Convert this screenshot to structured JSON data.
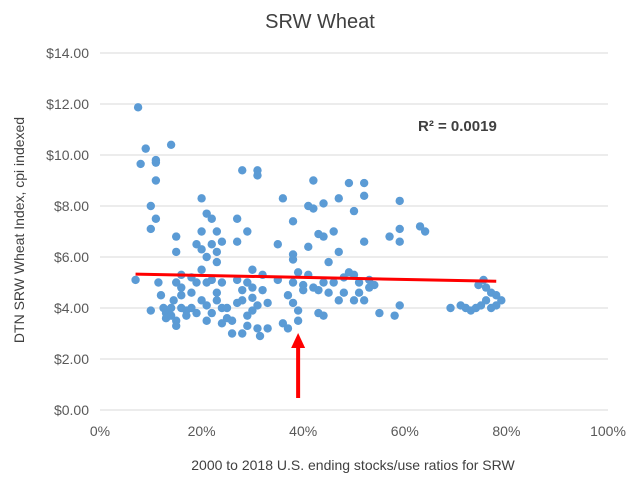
{
  "chart_data": {
    "type": "scatter",
    "title": "SRW Wheat",
    "xlabel": "2000 to 2018 U.S. ending stocks/use ratios for SRW",
    "ylabel": "DTN SRW Wheat Index, cpi indexed",
    "xlim": [
      0,
      1.0
    ],
    "ylim": [
      0,
      14
    ],
    "x_ticks": [
      0,
      0.2,
      0.4,
      0.6,
      0.8,
      1.0
    ],
    "x_tick_labels": [
      "0%",
      "20%",
      "40%",
      "60%",
      "80%",
      "100%"
    ],
    "y_ticks": [
      0,
      2,
      4,
      6,
      8,
      10,
      12,
      14
    ],
    "y_tick_labels": [
      "$0.00",
      "$2.00",
      "$4.00",
      "$6.00",
      "$8.00",
      "$10.00",
      "$12.00",
      "$14.00"
    ],
    "grid": true,
    "annotation": "R² = 0.0019",
    "arrow_at_x": 0.39,
    "colors": {
      "points": "#5b9bd5",
      "trendline": "#ff0000",
      "arrow": "#ff0000",
      "grid": "#d9d9d9"
    },
    "trendline": {
      "x": [
        0.07,
        0.78
      ],
      "y": [
        5.33,
        5.05
      ]
    },
    "points": [
      [
        0.075,
        11.87
      ],
      [
        0.08,
        9.65
      ],
      [
        0.09,
        10.25
      ],
      [
        0.07,
        5.1
      ],
      [
        0.11,
        9.8
      ],
      [
        0.11,
        9.7
      ],
      [
        0.11,
        9.0
      ],
      [
        0.1,
        8.0
      ],
      [
        0.1,
        7.1
      ],
      [
        0.11,
        7.5
      ],
      [
        0.115,
        5.0
      ],
      [
        0.12,
        4.5
      ],
      [
        0.1,
        3.9
      ],
      [
        0.125,
        4.0
      ],
      [
        0.13,
        3.8
      ],
      [
        0.13,
        3.6
      ],
      [
        0.14,
        10.4
      ],
      [
        0.14,
        3.7
      ],
      [
        0.15,
        6.8
      ],
      [
        0.15,
        6.2
      ],
      [
        0.15,
        5.0
      ],
      [
        0.145,
        4.3
      ],
      [
        0.14,
        4.0
      ],
      [
        0.15,
        3.5
      ],
      [
        0.15,
        3.3
      ],
      [
        0.16,
        5.3
      ],
      [
        0.16,
        4.8
      ],
      [
        0.16,
        4.5
      ],
      [
        0.16,
        4.0
      ],
      [
        0.17,
        3.9
      ],
      [
        0.17,
        3.7
      ],
      [
        0.18,
        5.2
      ],
      [
        0.18,
        4.6
      ],
      [
        0.18,
        4.0
      ],
      [
        0.19,
        6.5
      ],
      [
        0.19,
        5.0
      ],
      [
        0.19,
        3.8
      ],
      [
        0.2,
        8.3
      ],
      [
        0.2,
        7.0
      ],
      [
        0.2,
        6.3
      ],
      [
        0.2,
        5.5
      ],
      [
        0.2,
        4.3
      ],
      [
        0.21,
        7.7
      ],
      [
        0.21,
        6.0
      ],
      [
        0.21,
        5.0
      ],
      [
        0.21,
        4.1
      ],
      [
        0.21,
        3.5
      ],
      [
        0.22,
        7.5
      ],
      [
        0.22,
        6.5
      ],
      [
        0.22,
        5.1
      ],
      [
        0.22,
        3.8
      ],
      [
        0.23,
        7.0
      ],
      [
        0.23,
        6.2
      ],
      [
        0.23,
        5.8
      ],
      [
        0.23,
        4.6
      ],
      [
        0.23,
        4.3
      ],
      [
        0.24,
        6.6
      ],
      [
        0.24,
        5.0
      ],
      [
        0.24,
        4.0
      ],
      [
        0.24,
        3.4
      ],
      [
        0.25,
        4.0
      ],
      [
        0.25,
        3.6
      ],
      [
        0.26,
        3.0
      ],
      [
        0.26,
        3.5
      ],
      [
        0.27,
        7.5
      ],
      [
        0.27,
        6.6
      ],
      [
        0.27,
        5.1
      ],
      [
        0.27,
        4.2
      ],
      [
        0.28,
        9.4
      ],
      [
        0.28,
        4.7
      ],
      [
        0.28,
        4.3
      ],
      [
        0.28,
        3.0
      ],
      [
        0.29,
        7.0
      ],
      [
        0.29,
        5.0
      ],
      [
        0.29,
        3.7
      ],
      [
        0.29,
        3.3
      ],
      [
        0.3,
        5.5
      ],
      [
        0.3,
        4.8
      ],
      [
        0.3,
        4.4
      ],
      [
        0.3,
        3.9
      ],
      [
        0.31,
        9.4
      ],
      [
        0.31,
        9.2
      ],
      [
        0.31,
        4.1
      ],
      [
        0.31,
        3.2
      ],
      [
        0.315,
        2.9
      ],
      [
        0.32,
        5.3
      ],
      [
        0.32,
        4.7
      ],
      [
        0.33,
        3.2
      ],
      [
        0.33,
        4.2
      ],
      [
        0.35,
        6.5
      ],
      [
        0.35,
        5.1
      ],
      [
        0.36,
        8.3
      ],
      [
        0.36,
        3.4
      ],
      [
        0.37,
        3.2
      ],
      [
        0.37,
        4.5
      ],
      [
        0.38,
        7.4
      ],
      [
        0.38,
        6.1
      ],
      [
        0.38,
        5.9
      ],
      [
        0.38,
        5.0
      ],
      [
        0.38,
        4.2
      ],
      [
        0.39,
        3.5
      ],
      [
        0.39,
        3.9
      ],
      [
        0.39,
        5.4
      ],
      [
        0.4,
        4.9
      ],
      [
        0.4,
        4.7
      ],
      [
        0.41,
        8.0
      ],
      [
        0.41,
        6.4
      ],
      [
        0.41,
        5.3
      ],
      [
        0.42,
        9.0
      ],
      [
        0.42,
        7.9
      ],
      [
        0.42,
        4.8
      ],
      [
        0.43,
        6.9
      ],
      [
        0.43,
        4.7
      ],
      [
        0.43,
        3.8
      ],
      [
        0.44,
        8.1
      ],
      [
        0.44,
        6.8
      ],
      [
        0.44,
        5.0
      ],
      [
        0.44,
        3.7
      ],
      [
        0.45,
        5.8
      ],
      [
        0.45,
        4.6
      ],
      [
        0.46,
        7.0
      ],
      [
        0.46,
        5.0
      ],
      [
        0.47,
        8.3
      ],
      [
        0.47,
        6.2
      ],
      [
        0.47,
        4.3
      ],
      [
        0.48,
        4.6
      ],
      [
        0.48,
        5.2
      ],
      [
        0.49,
        8.9
      ],
      [
        0.49,
        5.4
      ],
      [
        0.5,
        7.8
      ],
      [
        0.5,
        5.3
      ],
      [
        0.5,
        4.3
      ],
      [
        0.51,
        5.0
      ],
      [
        0.51,
        4.6
      ],
      [
        0.52,
        8.9
      ],
      [
        0.52,
        8.4
      ],
      [
        0.52,
        6.6
      ],
      [
        0.52,
        4.3
      ],
      [
        0.53,
        5.1
      ],
      [
        0.53,
        4.8
      ],
      [
        0.54,
        4.9
      ],
      [
        0.55,
        3.8
      ],
      [
        0.57,
        6.8
      ],
      [
        0.58,
        3.7
      ],
      [
        0.59,
        8.2
      ],
      [
        0.59,
        7.1
      ],
      [
        0.59,
        6.6
      ],
      [
        0.59,
        4.1
      ],
      [
        0.63,
        7.2
      ],
      [
        0.64,
        7.0
      ],
      [
        0.69,
        4.0
      ],
      [
        0.71,
        4.1
      ],
      [
        0.72,
        4.0
      ],
      [
        0.73,
        3.9
      ],
      [
        0.74,
        4.0
      ],
      [
        0.745,
        4.9
      ],
      [
        0.75,
        4.1
      ],
      [
        0.755,
        5.1
      ],
      [
        0.76,
        4.8
      ],
      [
        0.76,
        4.3
      ],
      [
        0.77,
        4.0
      ],
      [
        0.77,
        4.6
      ],
      [
        0.78,
        4.5
      ],
      [
        0.78,
        4.1
      ],
      [
        0.79,
        4.3
      ]
    ]
  }
}
